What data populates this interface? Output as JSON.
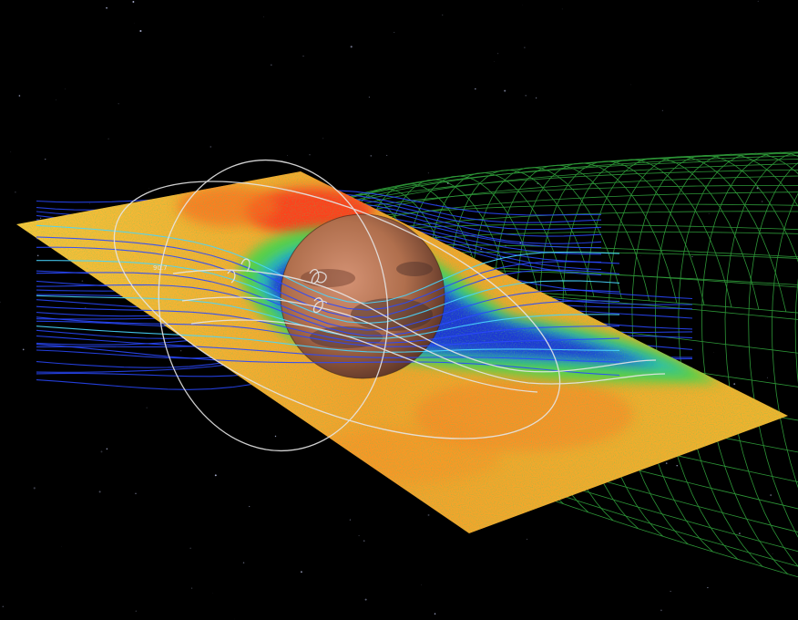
{
  "figure": {
    "orbit_label": "90.7",
    "colors": {
      "background": "#000000",
      "bow_shock_mesh": "#3cc84a",
      "field_lines": "#2a49ff",
      "field_lines_cyan": "#49d6ff",
      "orbit": "#e6e6e6",
      "plane_hot": "#ff2a1a",
      "plane_mid": "#ffb21e",
      "plane_low": "#47d64a",
      "plane_cold": "#1f2bd9",
      "planet": "#b9754f"
    }
  }
}
